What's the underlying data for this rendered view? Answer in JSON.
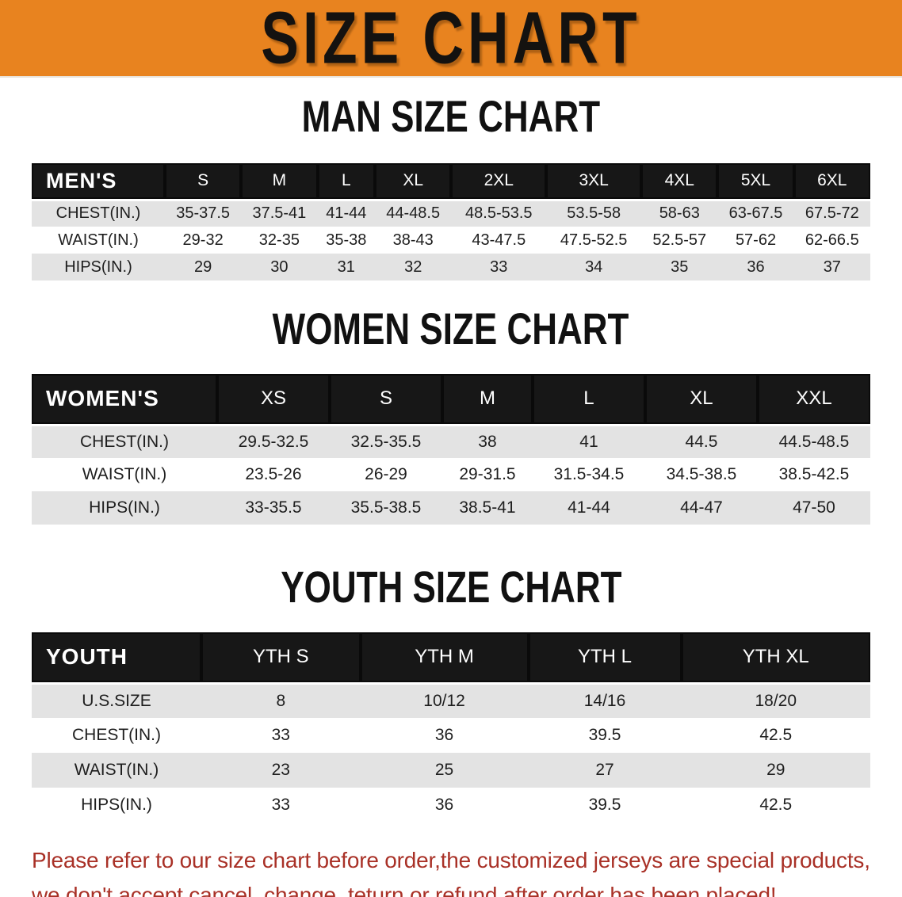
{
  "banner": {
    "title": "SIZE CHART",
    "bg_color": "#E8831F",
    "title_color": "#141210"
  },
  "colors": {
    "table_header_bg": "#171717",
    "table_header_text": "#FFFFFF",
    "row_stripe": "#E3E3E3",
    "footer_text": "#A93127"
  },
  "tables": [
    {
      "heading": "MAN SIZE CHART",
      "header": [
        "MEN'S",
        "S",
        "M",
        "L",
        "XL",
        "2XL",
        "3XL",
        "4XL",
        "5XL",
        "6XL"
      ],
      "rows": [
        [
          "CHEST(IN.)",
          "35-37.5",
          "37.5-41",
          "41-44",
          "44-48.5",
          "48.5-53.5",
          "53.5-58",
          "58-63",
          "63-67.5",
          "67.5-72"
        ],
        [
          "WAIST(IN.)",
          "29-32",
          "32-35",
          "35-38",
          "38-43",
          "43-47.5",
          "47.5-52.5",
          "52.5-57",
          "57-62",
          "62-66.5"
        ],
        [
          "HIPS(IN.)",
          "29",
          "30",
          "31",
          "32",
          "33",
          "34",
          "35",
          "36",
          "37"
        ]
      ]
    },
    {
      "heading": "WOMEN SIZE CHART",
      "header": [
        "WOMEN'S",
        "XS",
        "S",
        "M",
        "L",
        "XL",
        "XXL"
      ],
      "rows": [
        [
          "CHEST(IN.)",
          "29.5-32.5",
          "32.5-35.5",
          "38",
          "41",
          "44.5",
          "44.5-48.5"
        ],
        [
          "WAIST(IN.)",
          "23.5-26",
          "26-29",
          "29-31.5",
          "31.5-34.5",
          "34.5-38.5",
          "38.5-42.5"
        ],
        [
          "HIPS(IN.)",
          "33-35.5",
          "35.5-38.5",
          "38.5-41",
          "41-44",
          "44-47",
          "47-50"
        ]
      ]
    },
    {
      "heading": "YOUTH SIZE CHART",
      "header": [
        "YOUTH",
        "YTH S",
        "YTH M",
        "YTH L",
        "YTH XL"
      ],
      "rows": [
        [
          "U.S.SIZE",
          "8",
          "10/12",
          "14/16",
          "18/20"
        ],
        [
          "CHEST(IN.)",
          "33",
          "36",
          "39.5",
          "42.5"
        ],
        [
          "WAIST(IN.)",
          "23",
          "25",
          "27",
          "29"
        ],
        [
          "HIPS(IN.)",
          "33",
          "36",
          "39.5",
          "42.5"
        ]
      ]
    }
  ],
  "footer": {
    "line1": "Please refer to our size chart before order,the customized jerseys are special products,",
    "line2": "we don't accept cancel, change, teturn or refund after order has been placed!"
  }
}
